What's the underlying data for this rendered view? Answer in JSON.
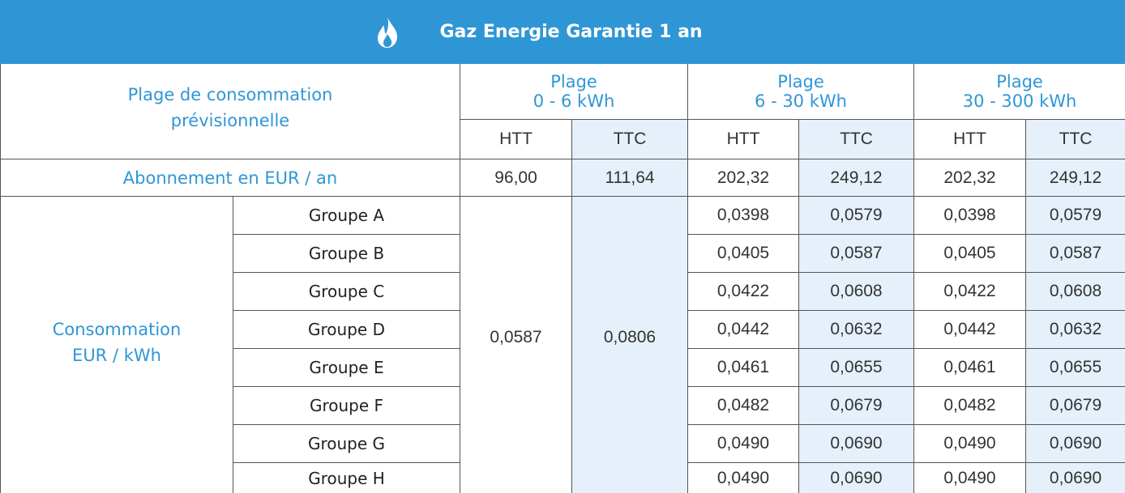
{
  "header": {
    "title": "Gaz Energie Garantie 1 an"
  },
  "table": {
    "range_header": "Plage de consommation prévisionnelle",
    "ranges": [
      {
        "label": "Plage",
        "range": "0 - 6 kWh"
      },
      {
        "label": "Plage",
        "range": "6 - 30 kWh"
      },
      {
        "label": "Plage",
        "range": "30 - 300 kWh"
      }
    ],
    "column_headers": [
      "HTT",
      "TTC",
      "HTT",
      "TTC",
      "HTT",
      "TTC"
    ],
    "subscription": {
      "label": "Abonnement en EUR / an",
      "values": [
        "96,00",
        "111,64",
        "202,32",
        "249,12",
        "202,32",
        "249,12"
      ]
    },
    "consumption": {
      "label": [
        "Consommation",
        "EUR / kWh"
      ],
      "first_range": [
        "0,0587",
        "0,0806"
      ],
      "groups": [
        {
          "name": "Groupe A",
          "values": [
            "0,0398",
            "0,0579",
            "0,0398",
            "0,0579"
          ]
        },
        {
          "name": "Groupe B",
          "values": [
            "0,0405",
            "0,0587",
            "0,0405",
            "0,0587"
          ]
        },
        {
          "name": "Groupe C",
          "values": [
            "0,0422",
            "0,0608",
            "0,0422",
            "0,0608"
          ]
        },
        {
          "name": "Groupe D",
          "values": [
            "0,0442",
            "0,0632",
            "0,0442",
            "0,0632"
          ]
        },
        {
          "name": "Groupe E",
          "values": [
            "0,0461",
            "0,0655",
            "0,0461",
            "0,0655"
          ]
        },
        {
          "name": "Groupe F",
          "values": [
            "0,0482",
            "0,0679",
            "0,0482",
            "0,0679"
          ]
        },
        {
          "name": "Groupe G",
          "values": [
            "0,0490",
            "0,0690",
            "0,0490",
            "0,0690"
          ]
        },
        {
          "name": "Groupe H",
          "values": [
            "0,0490",
            "0,0690",
            "0,0490",
            "0,0690"
          ]
        }
      ]
    }
  }
}
